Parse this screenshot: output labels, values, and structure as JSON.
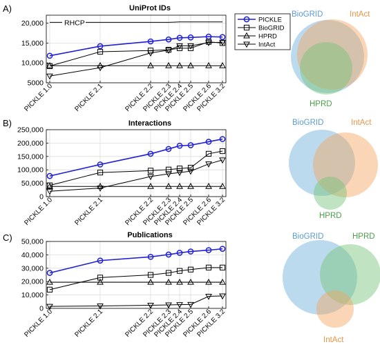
{
  "x_categories": [
    "PICKLE 1.0",
    "PICKLE 2.1",
    "PICKLE 2.2",
    "PICKLE 2.3",
    "PICKLE 2.4",
    "PICKLE 2.5",
    "PICKLE 2.6",
    "PICKLE 3.2"
  ],
  "legend": {
    "entries": [
      {
        "name": "PICKLE",
        "marker": "circle",
        "color": "#1f1fd6"
      },
      {
        "name": "BioGRID",
        "marker": "square",
        "color": "#000000"
      },
      {
        "name": "HPRD",
        "marker": "triangle-up",
        "color": "#000000"
      },
      {
        "name": "IntAct",
        "marker": "triangle-down",
        "color": "#000000"
      }
    ],
    "placement": "top-right of panel A"
  },
  "chart_data": [
    {
      "type": "line",
      "panel_label": "A)",
      "title": "UniProt IDs",
      "xlabel": "",
      "ylabel": "",
      "ylim": [
        5000,
        22000
      ],
      "yticks": [
        5000,
        10000,
        15000,
        20000
      ],
      "ytick_labels": [
        "5000",
        "10,000",
        "15,000",
        "20,000"
      ],
      "annotation": {
        "text": "RHCP",
        "value": 20200
      },
      "series": [
        {
          "name": "PICKLE",
          "values": [
            11800,
            14200,
            15400,
            15900,
            16300,
            16400,
            16600,
            16500
          ]
        },
        {
          "name": "BioGRID",
          "values": [
            9200,
            12800,
            13100,
            13300,
            13700,
            13700,
            15300,
            15000
          ]
        },
        {
          "name": "HPRD",
          "values": [
            9300,
            9300,
            9300,
            9300,
            9300,
            9300,
            9300,
            9300
          ]
        },
        {
          "name": "IntAct",
          "values": [
            6700,
            8800,
            12500,
            13200,
            14300,
            14300,
            15100,
            15200
          ]
        },
        {
          "name": "RHCP",
          "values": [
            20200,
            20200,
            20200,
            20200,
            20300,
            20300,
            20300,
            20300
          ]
        }
      ]
    },
    {
      "type": "line",
      "panel_label": "B)",
      "title": "Interactions",
      "xlabel": "",
      "ylabel": "",
      "ylim": [
        0,
        250000
      ],
      "yticks": [
        0,
        50000,
        100000,
        150000,
        200000,
        250000
      ],
      "ytick_labels": [
        "0",
        "50,000",
        "100,000",
        "150,000",
        "200,000",
        "250,000"
      ],
      "series": [
        {
          "name": "PICKLE",
          "values": [
            77000,
            120000,
            160000,
            178000,
            190000,
            192000,
            205000,
            215000
          ]
        },
        {
          "name": "BioGRID",
          "values": [
            42000,
            90000,
            97000,
            101000,
            105000,
            108000,
            160000,
            170000
          ]
        },
        {
          "name": "HPRD",
          "values": [
            38000,
            38000,
            38000,
            38000,
            38000,
            38000,
            38000,
            38000
          ]
        },
        {
          "name": "IntAct",
          "values": [
            20000,
            32000,
            75000,
            85000,
            90000,
            95000,
            122000,
            137000
          ]
        }
      ]
    },
    {
      "type": "line",
      "panel_label": "C)",
      "title": "Publications",
      "xlabel": "",
      "ylabel": "",
      "ylim": [
        0,
        50000
      ],
      "yticks": [
        0,
        10000,
        20000,
        30000,
        40000,
        50000
      ],
      "ytick_labels": [
        "0",
        "10,000",
        "20,000",
        "30,000",
        "40,000",
        "50,000"
      ],
      "series": [
        {
          "name": "PICKLE",
          "values": [
            26500,
            35700,
            38500,
            40200,
            41500,
            42500,
            43500,
            44500
          ]
        },
        {
          "name": "BioGRID",
          "values": [
            14000,
            23000,
            25000,
            26500,
            28000,
            29000,
            30500,
            30500
          ]
        },
        {
          "name": "HPRD",
          "values": [
            19500,
            19500,
            19500,
            19500,
            19500,
            19500,
            19500,
            19500
          ]
        },
        {
          "name": "IntAct",
          "values": [
            1500,
            1800,
            2300,
            2600,
            2800,
            2900,
            9000,
            9300
          ]
        }
      ]
    }
  ],
  "venn_diagrams": [
    {
      "panel": "A",
      "sets": [
        {
          "name": "BioGRID",
          "color": "#6baed6"
        },
        {
          "name": "IntAct",
          "color": "#f4a460"
        },
        {
          "name": "HPRD",
          "color": "#74c476"
        }
      ]
    },
    {
      "panel": "B",
      "sets": [
        {
          "name": "BioGRID",
          "color": "#6baed6"
        },
        {
          "name": "IntAct",
          "color": "#f4a460"
        },
        {
          "name": "HPRD",
          "color": "#74c476"
        }
      ]
    },
    {
      "panel": "C",
      "sets": [
        {
          "name": "BioGRID",
          "color": "#6baed6"
        },
        {
          "name": "HPRD",
          "color": "#74c476"
        },
        {
          "name": "IntAct",
          "color": "#f4a460"
        }
      ]
    }
  ]
}
